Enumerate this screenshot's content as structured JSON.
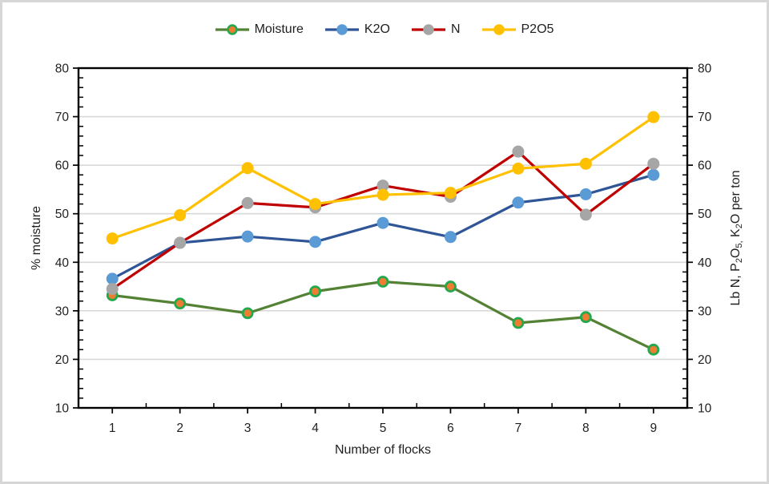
{
  "frame": {
    "border_color": "#d6d6d6",
    "background": "#ffffff"
  },
  "chart_data": {
    "type": "line",
    "title": "",
    "x_categories": [
      "1",
      "2",
      "3",
      "4",
      "5",
      "6",
      "7",
      "8",
      "9"
    ],
    "xlabel": "Number of flocks",
    "ylabel_left": "% moisture",
    "ylabel_right": "Lb N, P2O5, K2O per ton",
    "ylabel_right_segments": [
      {
        "text": "Lb N, P"
      },
      {
        "text": "2",
        "sub": true
      },
      {
        "text": "O"
      },
      {
        "text": "5,",
        "sub": true
      },
      {
        "text": " K"
      },
      {
        "text": "2",
        "sub": true
      },
      {
        "text": "O per ton"
      }
    ],
    "ylim": [
      10,
      80
    ],
    "yticks": [
      10,
      20,
      30,
      40,
      50,
      60,
      70,
      80
    ],
    "ytick_step": 10,
    "yminor_step": 2,
    "grid": true,
    "grid_color": "#d9d9d9",
    "axis_color": "#000000",
    "legend_position": "top",
    "series": [
      {
        "name": "Moisture",
        "axis": "left",
        "line_color": "#548235",
        "marker_fill": "#ED7D31",
        "marker_stroke": "#22A94E",
        "values": [
          33.2,
          31.5,
          29.5,
          34.0,
          36.0,
          35.0,
          27.5,
          28.7,
          22.0
        ]
      },
      {
        "name": "K2O",
        "axis": "right",
        "line_color": "#2F5597",
        "marker_fill": "#5B9BD5",
        "marker_stroke": "#5B9BD5",
        "values": [
          36.6,
          44.0,
          45.3,
          44.2,
          48.1,
          45.2,
          52.3,
          54.0,
          58.0
        ]
      },
      {
        "name": "N",
        "axis": "right",
        "line_color": "#C00000",
        "marker_fill": "#A6A6A6",
        "marker_stroke": "#A6A6A6",
        "values": [
          34.5,
          44.0,
          52.2,
          51.3,
          55.8,
          53.5,
          62.8,
          49.8,
          60.3
        ]
      },
      {
        "name": "P2O5",
        "axis": "right",
        "line_color": "#FFC000",
        "marker_fill": "#FFC000",
        "marker_stroke": "#FFC000",
        "values": [
          44.9,
          49.7,
          59.4,
          52.0,
          53.9,
          54.3,
          59.3,
          60.3,
          69.9
        ]
      }
    ]
  }
}
